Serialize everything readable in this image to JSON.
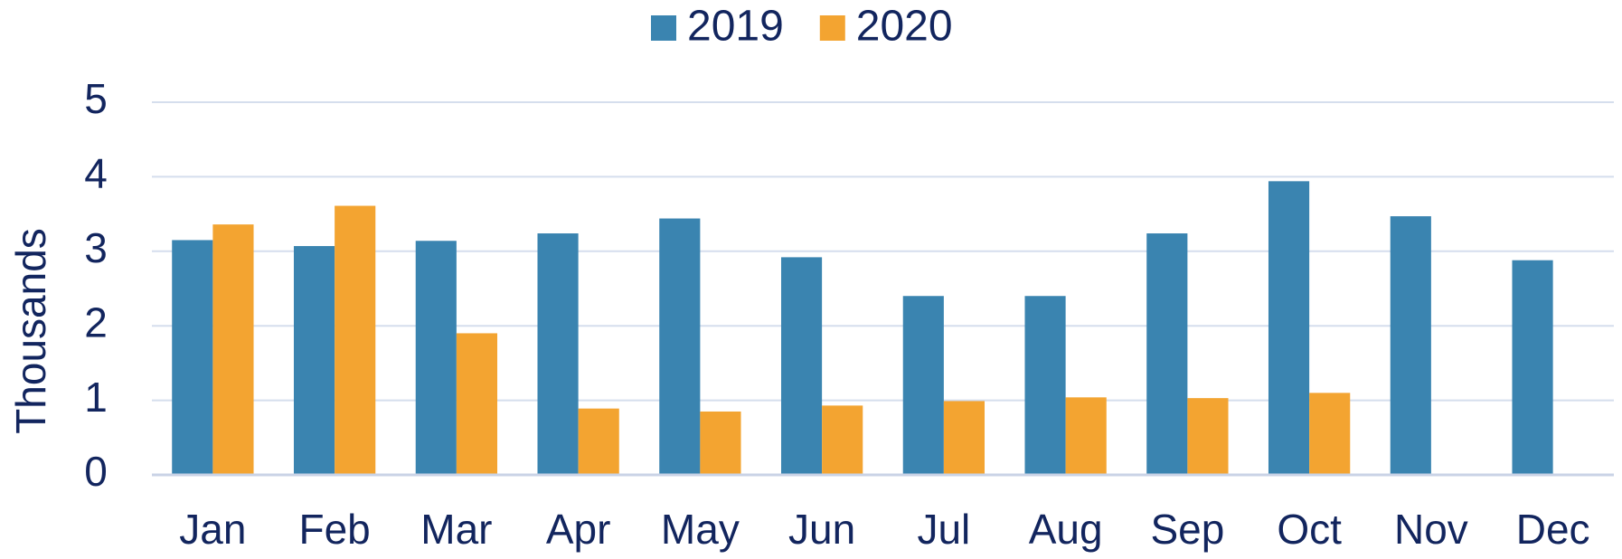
{
  "chart_data": {
    "type": "bar",
    "y_label": "Thousands",
    "categories": [
      "Jan",
      "Feb",
      "Mar",
      "Apr",
      "May",
      "Jun",
      "Jul",
      "Aug",
      "Sep",
      "Oct",
      "Nov",
      "Dec"
    ],
    "series": [
      {
        "name": "2019",
        "color": "#3a84b0",
        "values": [
          3.15,
          3.07,
          3.14,
          3.24,
          3.44,
          2.92,
          2.4,
          2.4,
          3.24,
          3.94,
          3.47,
          2.88
        ]
      },
      {
        "name": "2020",
        "color": "#f3a431",
        "values": [
          3.36,
          3.61,
          1.9,
          0.89,
          0.85,
          0.93,
          0.99,
          1.04,
          1.03,
          1.1,
          null,
          null
        ]
      }
    ],
    "ylim": [
      0,
      5
    ],
    "yticks": [
      0,
      1,
      2,
      3,
      4,
      5
    ],
    "grid": true,
    "legend": "top"
  }
}
